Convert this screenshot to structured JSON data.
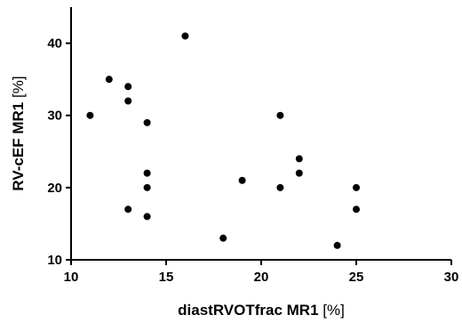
{
  "chart_data": {
    "type": "scatter",
    "title": "",
    "xlabel": {
      "bold": "diastRVOTfrac MR1",
      "unit": "[%]"
    },
    "ylabel": {
      "bold": "RV-cEF MR1",
      "unit": "[%]"
    },
    "xlim": [
      10,
      30
    ],
    "ylim": [
      10,
      45
    ],
    "x_ticks": [
      "10",
      "15",
      "20",
      "25",
      "30"
    ],
    "y_ticks": [
      "10",
      "20",
      "30",
      "40"
    ],
    "grid": false,
    "legend": "none",
    "marker_color": "#000000",
    "points": [
      {
        "x": 11,
        "y": 30
      },
      {
        "x": 12,
        "y": 35
      },
      {
        "x": 13,
        "y": 34
      },
      {
        "x": 13,
        "y": 32
      },
      {
        "x": 13,
        "y": 17
      },
      {
        "x": 14,
        "y": 29
      },
      {
        "x": 14,
        "y": 22
      },
      {
        "x": 14,
        "y": 20
      },
      {
        "x": 14,
        "y": 16
      },
      {
        "x": 16,
        "y": 41
      },
      {
        "x": 18,
        "y": 13
      },
      {
        "x": 19,
        "y": 21
      },
      {
        "x": 21,
        "y": 30
      },
      {
        "x": 21,
        "y": 20
      },
      {
        "x": 22,
        "y": 24
      },
      {
        "x": 22,
        "y": 22
      },
      {
        "x": 24,
        "y": 12
      },
      {
        "x": 25,
        "y": 20
      },
      {
        "x": 25,
        "y": 17
      }
    ]
  }
}
